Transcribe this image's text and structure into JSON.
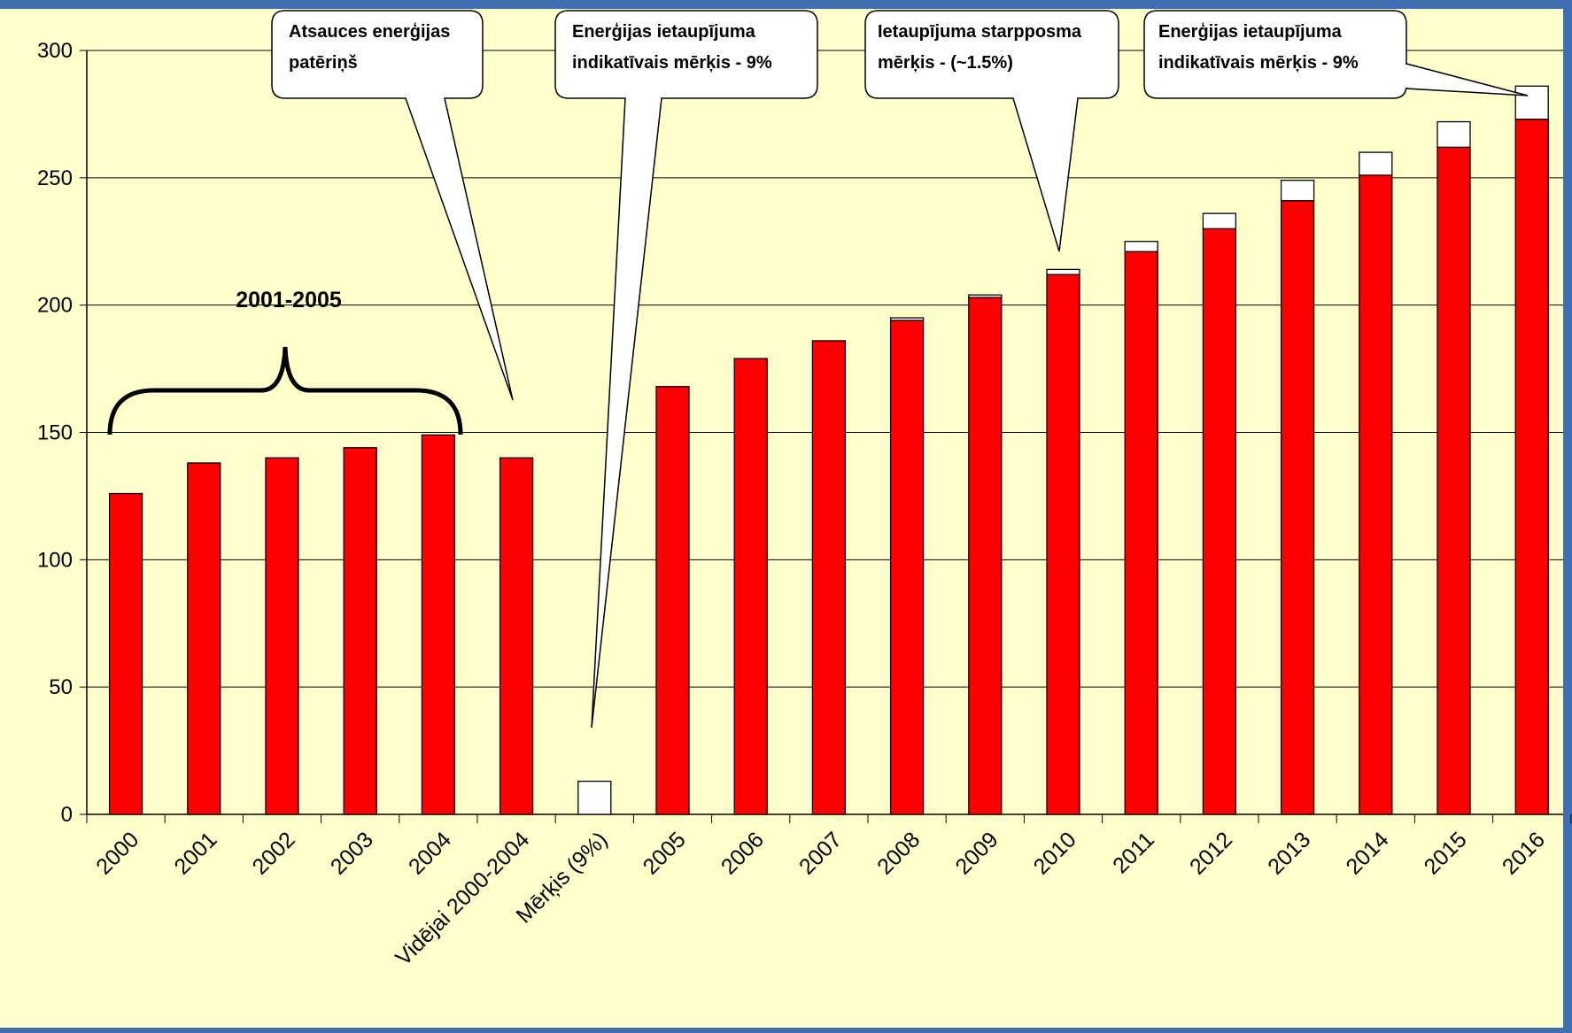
{
  "chart_data": {
    "type": "bar",
    "stacked": true,
    "title": "",
    "xlabel": "",
    "ylabel": "",
    "ylim": [
      0,
      300
    ],
    "yticks": [
      0,
      50,
      100,
      150,
      200,
      250,
      300
    ],
    "grid": true,
    "legend": "none",
    "categories": [
      "2000",
      "2001",
      "2002",
      "2003",
      "2004",
      "Vidējai 2000-2004",
      "Mērķis (9%)",
      "2005",
      "2006",
      "2007",
      "2008",
      "2009",
      "2010",
      "2011",
      "2012",
      "2013",
      "2014",
      "2015",
      "2016"
    ],
    "series": [
      {
        "color": "#ff0000",
        "values": [
          126,
          138,
          140,
          144,
          149,
          140,
          0,
          168,
          179,
          186,
          194,
          203,
          212,
          221,
          230,
          241,
          251,
          262,
          273
        ]
      },
      {
        "color": "#ffffff",
        "values": [
          0,
          0,
          0,
          0,
          0,
          0,
          13,
          0,
          0,
          0,
          1,
          1,
          2,
          4,
          6,
          8,
          9,
          10,
          13
        ]
      }
    ],
    "annotations": {
      "brace_label": "2001-2005",
      "callouts": [
        {
          "line1": "Atsauces enerģijas",
          "line2": "patēriņš"
        },
        {
          "line1": "Enerģijas ietaupījuma",
          "line2": "indikatīvais mērķis - 9%"
        },
        {
          "line1": "Ietaupījuma starpposma",
          "line2": "mērķis - (~1.5%)"
        },
        {
          "line1": "Enerģijas ietaupījuma",
          "line2": "indikatīvais mērķis - 9%"
        }
      ]
    }
  },
  "colors": {
    "background": "#ffffcc",
    "bar_main": "#ff0000",
    "bar_savings": "#ffffff",
    "top_strip": "#3f6fb0"
  }
}
